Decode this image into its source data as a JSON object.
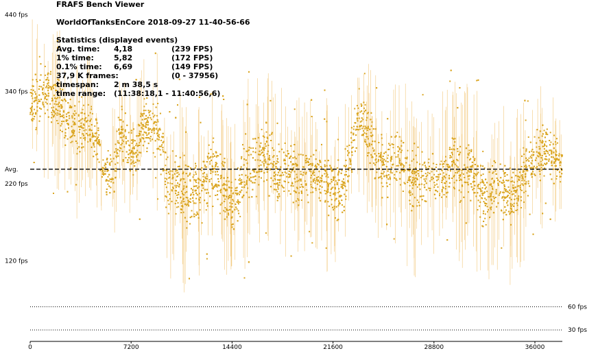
{
  "window": {
    "app_title": "FRAFS Bench Viewer",
    "bench_name": "WorldOfTanksEnCore 2018-09-27 11-40-56-66"
  },
  "stats": {
    "heading": "Statistics (displayed events)",
    "avg": {
      "label": "Avg. time:",
      "value": "4,18",
      "fps": "(239 FPS)"
    },
    "p1": {
      "label": "1% time:",
      "value": "5,82",
      "fps": "(172 FPS)"
    },
    "p01": {
      "label": "0.1% time:",
      "value": "6,69",
      "fps": "(149 FPS)"
    },
    "frames": {
      "label": "37,9 K frames:",
      "range": "(0 - 37956)"
    },
    "timespan": {
      "label": "timespan:",
      "value": "2 m 38,5 s"
    },
    "time_range": {
      "label": "time range:",
      "value": "(11:38:18,1 - 11:40:56,6)"
    }
  },
  "colors": {
    "series": "#DAA520",
    "series_light": "#F2C77A",
    "grid_dotted": "#000000",
    "avg_line": "#000000"
  },
  "chart_data": {
    "type": "scatter",
    "title": "",
    "x_range": [
      0,
      37956
    ],
    "y_range": [
      15,
      452
    ],
    "x_ticks": [
      {
        "value": 0,
        "label": "0"
      },
      {
        "value": 7200,
        "label": "7200"
      },
      {
        "value": 14400,
        "label": "14400"
      },
      {
        "value": 21600,
        "label": "21600"
      },
      {
        "value": 28800,
        "label": "28800"
      },
      {
        "value": 36000,
        "label": "36000"
      }
    ],
    "y_ticks": [
      {
        "value": 440,
        "label": "440 fps",
        "side": "left"
      },
      {
        "value": 340,
        "label": "340 fps",
        "side": "left"
      },
      {
        "value": 239,
        "label": "Avg.",
        "side": "left"
      },
      {
        "value": 220,
        "label": "220 fps",
        "side": "left"
      },
      {
        "value": 120,
        "label": "120 fps",
        "side": "left"
      },
      {
        "value": 60,
        "label": "60 fps",
        "side": "right"
      },
      {
        "value": 30,
        "label": "30 fps",
        "side": "right"
      }
    ],
    "reference_lines": [
      {
        "name": "Avg.",
        "value": 239,
        "style": "dashed"
      },
      {
        "name": "60 fps",
        "value": 60,
        "style": "dotted"
      },
      {
        "name": "30 fps",
        "value": 30,
        "style": "dotted"
      }
    ],
    "series": [
      {
        "frame_band_fps": [
          [
            0,
            325,
            55
          ],
          [
            1000,
            340,
            55
          ],
          [
            1900,
            322,
            50
          ],
          [
            2900,
            300,
            45
          ],
          [
            3400,
            290,
            55
          ],
          [
            4100,
            300,
            45
          ],
          [
            4900,
            270,
            40
          ],
          [
            5200,
            232,
            45
          ],
          [
            6000,
            240,
            40
          ],
          [
            6400,
            285,
            45
          ],
          [
            7000,
            270,
            45
          ],
          [
            7600,
            260,
            40
          ],
          [
            8000,
            298,
            50
          ],
          [
            8600,
            300,
            45
          ],
          [
            9200,
            285,
            50
          ],
          [
            9800,
            220,
            55
          ],
          [
            10400,
            220,
            60
          ],
          [
            11200,
            205,
            60
          ],
          [
            12200,
            220,
            55
          ],
          [
            13000,
            238,
            50
          ],
          [
            13800,
            215,
            50
          ],
          [
            14400,
            190,
            55
          ],
          [
            15200,
            230,
            60
          ],
          [
            16000,
            245,
            55
          ],
          [
            16800,
            260,
            55
          ],
          [
            17600,
            235,
            50
          ],
          [
            18200,
            245,
            55
          ],
          [
            18800,
            230,
            55
          ],
          [
            19400,
            225,
            50
          ],
          [
            20000,
            240,
            45
          ],
          [
            20600,
            230,
            50
          ],
          [
            21200,
            222,
            55
          ],
          [
            21800,
            205,
            50
          ],
          [
            22300,
            215,
            55
          ],
          [
            22800,
            250,
            50
          ],
          [
            23300,
            310,
            45
          ],
          [
            23800,
            300,
            50
          ],
          [
            24300,
            275,
            50
          ],
          [
            24800,
            250,
            50
          ],
          [
            25400,
            240,
            50
          ],
          [
            26000,
            255,
            55
          ],
          [
            26600,
            245,
            55
          ],
          [
            27200,
            228,
            60
          ],
          [
            27800,
            222,
            55
          ],
          [
            28400,
            230,
            50
          ],
          [
            29000,
            218,
            50
          ],
          [
            29600,
            235,
            55
          ],
          [
            30200,
            250,
            55
          ],
          [
            30800,
            230,
            55
          ],
          [
            31400,
            240,
            55
          ],
          [
            32000,
            215,
            60
          ],
          [
            32600,
            200,
            55
          ],
          [
            33200,
            225,
            55
          ],
          [
            33800,
            210,
            55
          ],
          [
            34400,
            200,
            55
          ],
          [
            35000,
            222,
            55
          ],
          [
            35600,
            245,
            50
          ],
          [
            36200,
            255,
            45
          ],
          [
            36800,
            265,
            45
          ],
          [
            37400,
            250,
            40
          ],
          [
            37956,
            245,
            35
          ]
        ]
      }
    ]
  }
}
